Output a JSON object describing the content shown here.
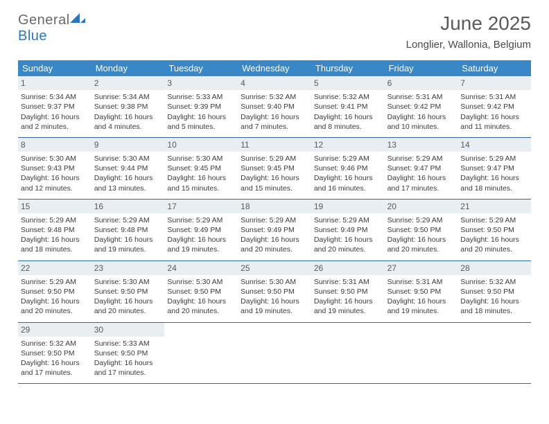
{
  "brand": {
    "word1": "General",
    "word2": "Blue"
  },
  "title": "June 2025",
  "location": "Longlier, Wallonia, Belgium",
  "colors": {
    "header_bg": "#3a87c8",
    "header_text": "#ffffff",
    "daynum_bg": "#e9eef2",
    "week_border": "#2a6aa8",
    "logo_gray": "#6a6a6a",
    "logo_blue": "#2a77bd"
  },
  "day_headers": [
    "Sunday",
    "Monday",
    "Tuesday",
    "Wednesday",
    "Thursday",
    "Friday",
    "Saturday"
  ],
  "weeks": [
    [
      {
        "n": "1",
        "sr": "5:34 AM",
        "ss": "9:37 PM",
        "dl": "16 hours and 2 minutes."
      },
      {
        "n": "2",
        "sr": "5:34 AM",
        "ss": "9:38 PM",
        "dl": "16 hours and 4 minutes."
      },
      {
        "n": "3",
        "sr": "5:33 AM",
        "ss": "9:39 PM",
        "dl": "16 hours and 5 minutes."
      },
      {
        "n": "4",
        "sr": "5:32 AM",
        "ss": "9:40 PM",
        "dl": "16 hours and 7 minutes."
      },
      {
        "n": "5",
        "sr": "5:32 AM",
        "ss": "9:41 PM",
        "dl": "16 hours and 8 minutes."
      },
      {
        "n": "6",
        "sr": "5:31 AM",
        "ss": "9:42 PM",
        "dl": "16 hours and 10 minutes."
      },
      {
        "n": "7",
        "sr": "5:31 AM",
        "ss": "9:42 PM",
        "dl": "16 hours and 11 minutes."
      }
    ],
    [
      {
        "n": "8",
        "sr": "5:30 AM",
        "ss": "9:43 PM",
        "dl": "16 hours and 12 minutes."
      },
      {
        "n": "9",
        "sr": "5:30 AM",
        "ss": "9:44 PM",
        "dl": "16 hours and 13 minutes."
      },
      {
        "n": "10",
        "sr": "5:30 AM",
        "ss": "9:45 PM",
        "dl": "16 hours and 15 minutes."
      },
      {
        "n": "11",
        "sr": "5:29 AM",
        "ss": "9:45 PM",
        "dl": "16 hours and 15 minutes."
      },
      {
        "n": "12",
        "sr": "5:29 AM",
        "ss": "9:46 PM",
        "dl": "16 hours and 16 minutes."
      },
      {
        "n": "13",
        "sr": "5:29 AM",
        "ss": "9:47 PM",
        "dl": "16 hours and 17 minutes."
      },
      {
        "n": "14",
        "sr": "5:29 AM",
        "ss": "9:47 PM",
        "dl": "16 hours and 18 minutes."
      }
    ],
    [
      {
        "n": "15",
        "sr": "5:29 AM",
        "ss": "9:48 PM",
        "dl": "16 hours and 18 minutes."
      },
      {
        "n": "16",
        "sr": "5:29 AM",
        "ss": "9:48 PM",
        "dl": "16 hours and 19 minutes."
      },
      {
        "n": "17",
        "sr": "5:29 AM",
        "ss": "9:49 PM",
        "dl": "16 hours and 19 minutes."
      },
      {
        "n": "18",
        "sr": "5:29 AM",
        "ss": "9:49 PM",
        "dl": "16 hours and 20 minutes."
      },
      {
        "n": "19",
        "sr": "5:29 AM",
        "ss": "9:49 PM",
        "dl": "16 hours and 20 minutes."
      },
      {
        "n": "20",
        "sr": "5:29 AM",
        "ss": "9:50 PM",
        "dl": "16 hours and 20 minutes."
      },
      {
        "n": "21",
        "sr": "5:29 AM",
        "ss": "9:50 PM",
        "dl": "16 hours and 20 minutes."
      }
    ],
    [
      {
        "n": "22",
        "sr": "5:29 AM",
        "ss": "9:50 PM",
        "dl": "16 hours and 20 minutes."
      },
      {
        "n": "23",
        "sr": "5:30 AM",
        "ss": "9:50 PM",
        "dl": "16 hours and 20 minutes."
      },
      {
        "n": "24",
        "sr": "5:30 AM",
        "ss": "9:50 PM",
        "dl": "16 hours and 20 minutes."
      },
      {
        "n": "25",
        "sr": "5:30 AM",
        "ss": "9:50 PM",
        "dl": "16 hours and 19 minutes."
      },
      {
        "n": "26",
        "sr": "5:31 AM",
        "ss": "9:50 PM",
        "dl": "16 hours and 19 minutes."
      },
      {
        "n": "27",
        "sr": "5:31 AM",
        "ss": "9:50 PM",
        "dl": "16 hours and 19 minutes."
      },
      {
        "n": "28",
        "sr": "5:32 AM",
        "ss": "9:50 PM",
        "dl": "16 hours and 18 minutes."
      }
    ],
    [
      {
        "n": "29",
        "sr": "5:32 AM",
        "ss": "9:50 PM",
        "dl": "16 hours and 17 minutes."
      },
      {
        "n": "30",
        "sr": "5:33 AM",
        "ss": "9:50 PM",
        "dl": "16 hours and 17 minutes."
      },
      null,
      null,
      null,
      null,
      null
    ]
  ],
  "labels": {
    "sunrise": "Sunrise: ",
    "sunset": "Sunset: ",
    "daylight": "Daylight: "
  }
}
